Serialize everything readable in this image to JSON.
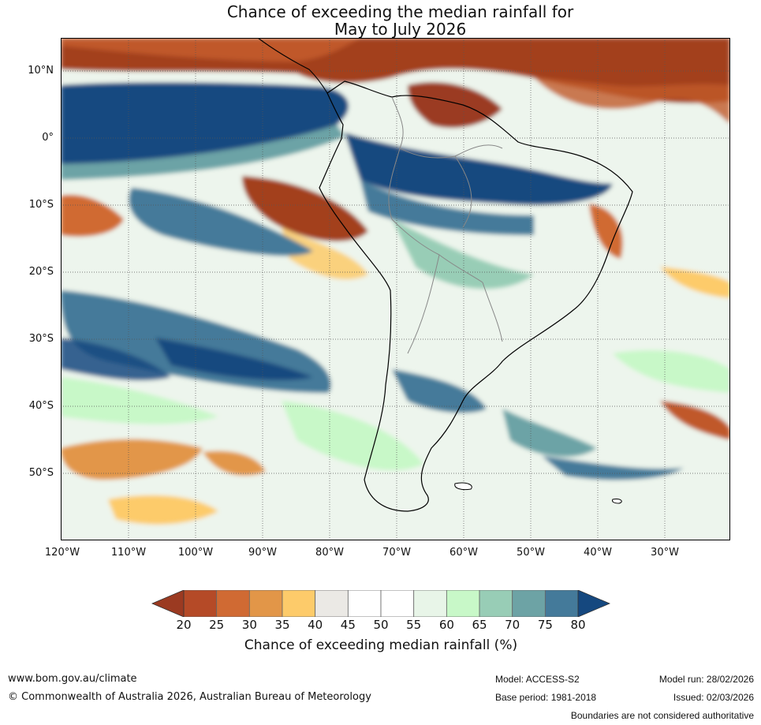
{
  "title": {
    "line1": "Chance of exceeding the median rainfall for",
    "line2": "May to July 2026"
  },
  "map": {
    "lat_labels": [
      "10°N",
      "0°",
      "10°S",
      "20°S",
      "30°S",
      "40°S",
      "50°S"
    ],
    "lon_labels": [
      "120°W",
      "110°W",
      "100°W",
      "90°W",
      "80°W",
      "70°W",
      "60°W",
      "50°W",
      "40°W",
      "30°W"
    ]
  },
  "colorbar": {
    "ticks": [
      "20",
      "25",
      "30",
      "35",
      "40",
      "45",
      "50",
      "55",
      "60",
      "65",
      "70",
      "75",
      "80"
    ],
    "label": "Chance of exceeding median rainfall (%)",
    "colors": [
      "#9b3a21",
      "#b54a27",
      "#d06a33",
      "#e29648",
      "#fdcb6a",
      "#ebe9e5",
      "#ffffff",
      "#ffffff",
      "#e8f5e8",
      "#c8f8c8",
      "#98cdb6",
      "#6da3a5",
      "#447a9a",
      "#15487f"
    ]
  },
  "footer": {
    "website": "www.bom.gov.au/climate",
    "copyright": "© Commonwealth of Australia 2026, Australian Bureau of Meteorology",
    "model": "Model: ACCESS-S2",
    "base_period": "Base period: 1981-2018",
    "model_run": "Model run: 28/02/2026",
    "issued": "Issued: 02/03/2026",
    "disclaimer": "Boundaries are not considered authoritative"
  }
}
